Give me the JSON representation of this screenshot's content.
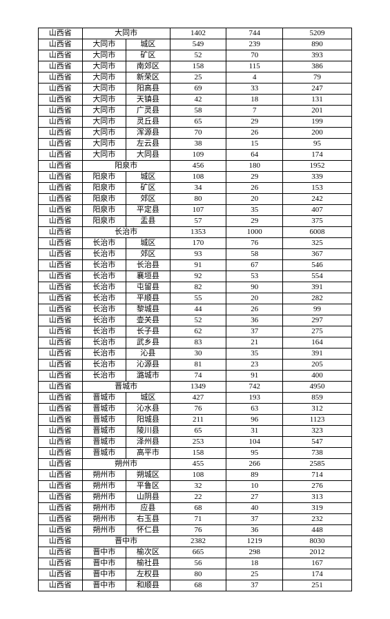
{
  "colcount": 6,
  "rows": [
    {
      "cells": [
        {
          "t": "山西省"
        },
        {
          "t": "大同市",
          "span": 2
        },
        {
          "t": "1402"
        },
        {
          "t": "744"
        },
        {
          "t": "5209"
        }
      ]
    },
    {
      "cells": [
        {
          "t": "山西省"
        },
        {
          "t": "大同市"
        },
        {
          "t": "城区"
        },
        {
          "t": "549"
        },
        {
          "t": "239"
        },
        {
          "t": "890"
        }
      ]
    },
    {
      "cells": [
        {
          "t": "山西省"
        },
        {
          "t": "大同市"
        },
        {
          "t": "矿区"
        },
        {
          "t": "52"
        },
        {
          "t": "70"
        },
        {
          "t": "393"
        }
      ]
    },
    {
      "cells": [
        {
          "t": "山西省"
        },
        {
          "t": "大同市"
        },
        {
          "t": "南郊区"
        },
        {
          "t": "158"
        },
        {
          "t": "115"
        },
        {
          "t": "386"
        }
      ]
    },
    {
      "cells": [
        {
          "t": "山西省"
        },
        {
          "t": "大同市"
        },
        {
          "t": "新荣区"
        },
        {
          "t": "25"
        },
        {
          "t": "4"
        },
        {
          "t": "79"
        }
      ]
    },
    {
      "cells": [
        {
          "t": "山西省"
        },
        {
          "t": "大同市"
        },
        {
          "t": "阳高县"
        },
        {
          "t": "69"
        },
        {
          "t": "33"
        },
        {
          "t": "247"
        }
      ]
    },
    {
      "cells": [
        {
          "t": "山西省"
        },
        {
          "t": "大同市"
        },
        {
          "t": "天镇县"
        },
        {
          "t": "42"
        },
        {
          "t": "18"
        },
        {
          "t": "131"
        }
      ]
    },
    {
      "cells": [
        {
          "t": "山西省"
        },
        {
          "t": "大同市"
        },
        {
          "t": "广灵县"
        },
        {
          "t": "58"
        },
        {
          "t": "7"
        },
        {
          "t": "201"
        }
      ]
    },
    {
      "cells": [
        {
          "t": "山西省"
        },
        {
          "t": "大同市"
        },
        {
          "t": "灵丘县"
        },
        {
          "t": "65"
        },
        {
          "t": "29"
        },
        {
          "t": "199"
        }
      ]
    },
    {
      "cells": [
        {
          "t": "山西省"
        },
        {
          "t": "大同市"
        },
        {
          "t": "浑源县"
        },
        {
          "t": "70"
        },
        {
          "t": "26"
        },
        {
          "t": "200"
        }
      ]
    },
    {
      "cells": [
        {
          "t": "山西省"
        },
        {
          "t": "大同市"
        },
        {
          "t": "左云县"
        },
        {
          "t": "38"
        },
        {
          "t": "15"
        },
        {
          "t": "95"
        }
      ]
    },
    {
      "cells": [
        {
          "t": "山西省"
        },
        {
          "t": "大同市"
        },
        {
          "t": "大同县"
        },
        {
          "t": "109"
        },
        {
          "t": "64"
        },
        {
          "t": "174"
        }
      ]
    },
    {
      "cells": [
        {
          "t": "山西省"
        },
        {
          "t": "阳泉市",
          "span": 2
        },
        {
          "t": "456"
        },
        {
          "t": "180"
        },
        {
          "t": "1952"
        }
      ]
    },
    {
      "cells": [
        {
          "t": "山西省"
        },
        {
          "t": "阳泉市"
        },
        {
          "t": "城区"
        },
        {
          "t": "108"
        },
        {
          "t": "29"
        },
        {
          "t": "339"
        }
      ]
    },
    {
      "cells": [
        {
          "t": "山西省"
        },
        {
          "t": "阳泉市"
        },
        {
          "t": "矿区"
        },
        {
          "t": "34"
        },
        {
          "t": "26"
        },
        {
          "t": "153"
        }
      ]
    },
    {
      "cells": [
        {
          "t": "山西省"
        },
        {
          "t": "阳泉市"
        },
        {
          "t": "郊区"
        },
        {
          "t": "80"
        },
        {
          "t": "20"
        },
        {
          "t": "242"
        }
      ]
    },
    {
      "cells": [
        {
          "t": "山西省"
        },
        {
          "t": "阳泉市"
        },
        {
          "t": "平定县"
        },
        {
          "t": "107"
        },
        {
          "t": "35"
        },
        {
          "t": "407"
        }
      ]
    },
    {
      "cells": [
        {
          "t": "山西省"
        },
        {
          "t": "阳泉市"
        },
        {
          "t": "盂县"
        },
        {
          "t": "57"
        },
        {
          "t": "29"
        },
        {
          "t": "375"
        }
      ]
    },
    {
      "cells": [
        {
          "t": "山西省"
        },
        {
          "t": "长治市",
          "span": 2
        },
        {
          "t": "1353"
        },
        {
          "t": "1000"
        },
        {
          "t": "6008"
        }
      ]
    },
    {
      "cells": [
        {
          "t": "山西省"
        },
        {
          "t": "长治市"
        },
        {
          "t": "城区"
        },
        {
          "t": "170"
        },
        {
          "t": "76"
        },
        {
          "t": "325"
        }
      ]
    },
    {
      "cells": [
        {
          "t": "山西省"
        },
        {
          "t": "长治市"
        },
        {
          "t": "郊区"
        },
        {
          "t": "93"
        },
        {
          "t": "58"
        },
        {
          "t": "367"
        }
      ]
    },
    {
      "cells": [
        {
          "t": "山西省"
        },
        {
          "t": "长治市"
        },
        {
          "t": "长治县"
        },
        {
          "t": "91"
        },
        {
          "t": "67"
        },
        {
          "t": "546"
        }
      ]
    },
    {
      "cells": [
        {
          "t": "山西省"
        },
        {
          "t": "长治市"
        },
        {
          "t": "襄垣县"
        },
        {
          "t": "92"
        },
        {
          "t": "53"
        },
        {
          "t": "554"
        }
      ]
    },
    {
      "cells": [
        {
          "t": "山西省"
        },
        {
          "t": "长治市"
        },
        {
          "t": "屯留县"
        },
        {
          "t": "82"
        },
        {
          "t": "90"
        },
        {
          "t": "391"
        }
      ]
    },
    {
      "cells": [
        {
          "t": "山西省"
        },
        {
          "t": "长治市"
        },
        {
          "t": "平顺县"
        },
        {
          "t": "55"
        },
        {
          "t": "20"
        },
        {
          "t": "282"
        }
      ]
    },
    {
      "cells": [
        {
          "t": "山西省"
        },
        {
          "t": "长治市"
        },
        {
          "t": "黎城县"
        },
        {
          "t": "44"
        },
        {
          "t": "26"
        },
        {
          "t": "99"
        }
      ]
    },
    {
      "cells": [
        {
          "t": "山西省"
        },
        {
          "t": "长治市"
        },
        {
          "t": "壶关县"
        },
        {
          "t": "52"
        },
        {
          "t": "36"
        },
        {
          "t": "297"
        }
      ]
    },
    {
      "cells": [
        {
          "t": "山西省"
        },
        {
          "t": "长治市"
        },
        {
          "t": "长子县"
        },
        {
          "t": "62"
        },
        {
          "t": "37"
        },
        {
          "t": "275"
        }
      ]
    },
    {
      "cells": [
        {
          "t": "山西省"
        },
        {
          "t": "长治市"
        },
        {
          "t": "武乡县"
        },
        {
          "t": "83"
        },
        {
          "t": "21"
        },
        {
          "t": "164"
        }
      ]
    },
    {
      "cells": [
        {
          "t": "山西省"
        },
        {
          "t": "长治市"
        },
        {
          "t": "沁县"
        },
        {
          "t": "30"
        },
        {
          "t": "35"
        },
        {
          "t": "391"
        }
      ]
    },
    {
      "cells": [
        {
          "t": "山西省"
        },
        {
          "t": "长治市"
        },
        {
          "t": "沁源县"
        },
        {
          "t": "81"
        },
        {
          "t": "23"
        },
        {
          "t": "205"
        }
      ]
    },
    {
      "cells": [
        {
          "t": "山西省"
        },
        {
          "t": "长治市"
        },
        {
          "t": "潞城市"
        },
        {
          "t": "74"
        },
        {
          "t": "91"
        },
        {
          "t": "400"
        }
      ]
    },
    {
      "cells": [
        {
          "t": "山西省"
        },
        {
          "t": "晋城市",
          "span": 2
        },
        {
          "t": "1349"
        },
        {
          "t": "742"
        },
        {
          "t": "4950"
        }
      ]
    },
    {
      "cells": [
        {
          "t": "山西省"
        },
        {
          "t": "晋城市"
        },
        {
          "t": "城区"
        },
        {
          "t": "427"
        },
        {
          "t": "193"
        },
        {
          "t": "859"
        }
      ]
    },
    {
      "cells": [
        {
          "t": "山西省"
        },
        {
          "t": "晋城市"
        },
        {
          "t": "沁水县"
        },
        {
          "t": "76"
        },
        {
          "t": "63"
        },
        {
          "t": "312"
        }
      ]
    },
    {
      "cells": [
        {
          "t": "山西省"
        },
        {
          "t": "晋城市"
        },
        {
          "t": "阳城县"
        },
        {
          "t": "211"
        },
        {
          "t": "96"
        },
        {
          "t": "1123"
        }
      ]
    },
    {
      "cells": [
        {
          "t": "山西省"
        },
        {
          "t": "晋城市"
        },
        {
          "t": "陵川县"
        },
        {
          "t": "65"
        },
        {
          "t": "31"
        },
        {
          "t": "323"
        }
      ]
    },
    {
      "cells": [
        {
          "t": "山西省"
        },
        {
          "t": "晋城市"
        },
        {
          "t": "泽州县"
        },
        {
          "t": "253"
        },
        {
          "t": "104"
        },
        {
          "t": "547"
        }
      ]
    },
    {
      "cells": [
        {
          "t": "山西省"
        },
        {
          "t": "晋城市"
        },
        {
          "t": "高平市"
        },
        {
          "t": "158"
        },
        {
          "t": "95"
        },
        {
          "t": "738"
        }
      ]
    },
    {
      "cells": [
        {
          "t": "山西省"
        },
        {
          "t": "朔州市",
          "span": 2
        },
        {
          "t": "455"
        },
        {
          "t": "266"
        },
        {
          "t": "2585"
        }
      ]
    },
    {
      "cells": [
        {
          "t": "山西省"
        },
        {
          "t": "朔州市"
        },
        {
          "t": "朔城区"
        },
        {
          "t": "108"
        },
        {
          "t": "89"
        },
        {
          "t": "714"
        }
      ]
    },
    {
      "cells": [
        {
          "t": "山西省"
        },
        {
          "t": "朔州市"
        },
        {
          "t": "平鲁区"
        },
        {
          "t": "32"
        },
        {
          "t": "10"
        },
        {
          "t": "276"
        }
      ]
    },
    {
      "cells": [
        {
          "t": "山西省"
        },
        {
          "t": "朔州市"
        },
        {
          "t": "山阴县"
        },
        {
          "t": "22"
        },
        {
          "t": "27"
        },
        {
          "t": "313"
        }
      ]
    },
    {
      "cells": [
        {
          "t": "山西省"
        },
        {
          "t": "朔州市"
        },
        {
          "t": "应县"
        },
        {
          "t": "68"
        },
        {
          "t": "40"
        },
        {
          "t": "319"
        }
      ]
    },
    {
      "cells": [
        {
          "t": "山西省"
        },
        {
          "t": "朔州市"
        },
        {
          "t": "右玉县"
        },
        {
          "t": "71"
        },
        {
          "t": "37"
        },
        {
          "t": "232"
        }
      ]
    },
    {
      "cells": [
        {
          "t": "山西省"
        },
        {
          "t": "朔州市"
        },
        {
          "t": "怀仁县"
        },
        {
          "t": "76"
        },
        {
          "t": "36"
        },
        {
          "t": "448"
        }
      ]
    },
    {
      "cells": [
        {
          "t": "山西省"
        },
        {
          "t": "晋中市",
          "span": 2
        },
        {
          "t": "2382"
        },
        {
          "t": "1219"
        },
        {
          "t": "8030"
        }
      ]
    },
    {
      "cells": [
        {
          "t": "山西省"
        },
        {
          "t": "晋中市"
        },
        {
          "t": "榆次区"
        },
        {
          "t": "665"
        },
        {
          "t": "298"
        },
        {
          "t": "2012"
        }
      ]
    },
    {
      "cells": [
        {
          "t": "山西省"
        },
        {
          "t": "晋中市"
        },
        {
          "t": "榆社县"
        },
        {
          "t": "56"
        },
        {
          "t": "18"
        },
        {
          "t": "167"
        }
      ]
    },
    {
      "cells": [
        {
          "t": "山西省"
        },
        {
          "t": "晋中市"
        },
        {
          "t": "左权县"
        },
        {
          "t": "80"
        },
        {
          "t": "25"
        },
        {
          "t": "174"
        }
      ]
    },
    {
      "cells": [
        {
          "t": "山西省"
        },
        {
          "t": "晋中市"
        },
        {
          "t": "和顺县"
        },
        {
          "t": "68"
        },
        {
          "t": "37"
        },
        {
          "t": "251"
        }
      ]
    }
  ]
}
